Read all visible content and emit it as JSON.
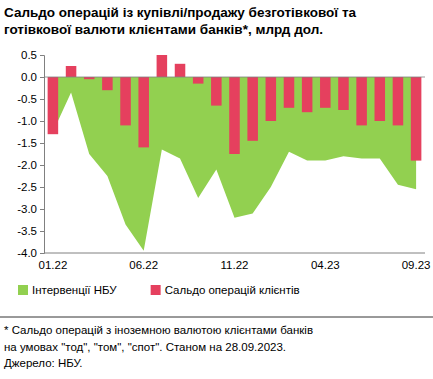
{
  "chart_data": {
    "type": "bar",
    "title": "Сальдо операцій із купівлі/продажу безготівкової та готівкової валюти клієнтами банків*, млрд дол.",
    "categories": [
      "01.22",
      null,
      null,
      null,
      null,
      "06.22",
      null,
      null,
      null,
      null,
      "11.22",
      null,
      null,
      null,
      null,
      "04.23",
      null,
      null,
      null,
      null,
      "09.23"
    ],
    "series": [
      {
        "name": "Інтервенції НБУ",
        "type": "area",
        "color": "#92d050",
        "values": [
          -1.25,
          -0.35,
          -1.75,
          -2.25,
          -3.35,
          -3.95,
          -1.65,
          -1.85,
          -2.75,
          -2.1,
          -3.2,
          -3.1,
          -2.5,
          -1.7,
          -1.9,
          -1.9,
          -1.8,
          -1.85,
          -1.85,
          -2.45,
          -2.55
        ]
      },
      {
        "name": "Сальдо операцій клієнтів",
        "type": "bar",
        "color": "#e5405e",
        "values": [
          -1.3,
          0.25,
          -0.05,
          -0.3,
          -1.1,
          -1.6,
          0.5,
          0.3,
          -0.15,
          -0.65,
          -1.75,
          -1.45,
          -1.0,
          -0.7,
          -0.8,
          -0.7,
          -0.75,
          -1.1,
          -1.0,
          -1.1,
          -1.9
        ]
      }
    ],
    "ylim": [
      -4,
      0.5
    ],
    "yticks": [
      0.5,
      {
        "value": 0,
        "label": "0.0"
      },
      -0.5,
      {
        "value": -1,
        "label": "-1.0"
      },
      -1.5,
      {
        "value": -2,
        "label": "-2.0"
      },
      -2.5,
      {
        "value": -3,
        "label": "-3.0"
      },
      -3.5,
      {
        "value": -4,
        "label": "-4.0"
      }
    ],
    "grid": false,
    "legend": "bottom",
    "notes": [
      "* Сальдо операцій з іноземною валютою клієнтами банків",
      "на умовах \"тод\", \"том\", \"спот\". Станом на 28.09.2023.",
      "Джерело: НБУ."
    ]
  }
}
